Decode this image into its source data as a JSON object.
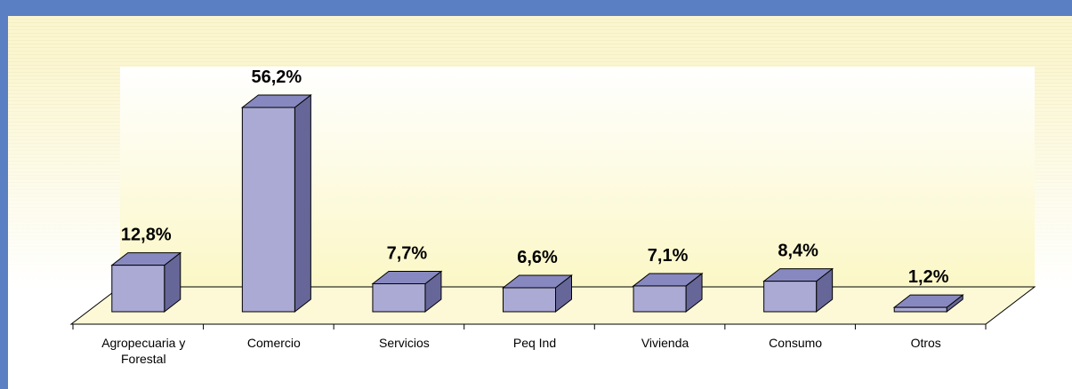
{
  "chart_data": {
    "type": "bar3d",
    "categories": [
      "Agropecuaria y Forestal",
      "Comercio",
      "Servicios",
      "Peq Ind",
      "Vivienda",
      "Consumo",
      "Otros"
    ],
    "values": [
      12.8,
      56.2,
      7.7,
      6.6,
      7.1,
      8.4,
      1.2
    ],
    "value_labels": [
      "12,8%",
      "56,2%",
      "7,7%",
      "6,6%",
      "7,1%",
      "8,4%",
      "1,2%"
    ],
    "color": "#aaaad4"
  }
}
